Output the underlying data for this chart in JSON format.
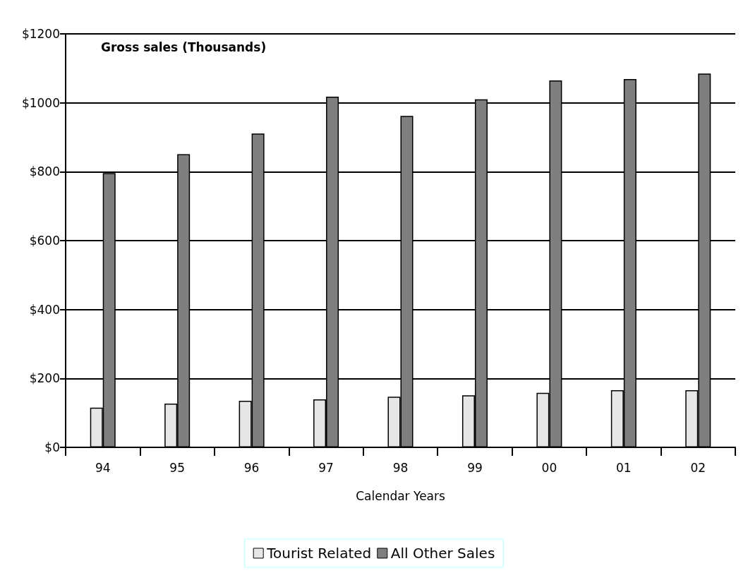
{
  "chart_data": {
    "type": "bar",
    "title": "Gross sales (Thousands)",
    "xlabel": "Calendar Years",
    "categories": [
      "94",
      "95",
      "96",
      "97",
      "98",
      "99",
      "00",
      "01",
      "02"
    ],
    "series": [
      {
        "name": "Tourist Related",
        "color": "#e6e6e6",
        "values": [
          115,
          127,
          135,
          139,
          147,
          151,
          158,
          166,
          166
        ]
      },
      {
        "name": "All Other Sales",
        "color": "#7f7f7f",
        "values": [
          796,
          851,
          911,
          1018,
          962,
          1010,
          1065,
          1069,
          1085
        ]
      }
    ],
    "ylim": [
      0,
      1200
    ],
    "yticks": [
      {
        "value": 0,
        "label": "$0"
      },
      {
        "value": 200,
        "label": "$200"
      },
      {
        "value": 400,
        "label": "$400"
      },
      {
        "value": 600,
        "label": "$600"
      },
      {
        "value": 800,
        "label": "$800"
      },
      {
        "value": 1000,
        "label": "$1000"
      },
      {
        "value": 1200,
        "label": "$1200"
      }
    ],
    "grid": "y",
    "legend": "bottom"
  }
}
